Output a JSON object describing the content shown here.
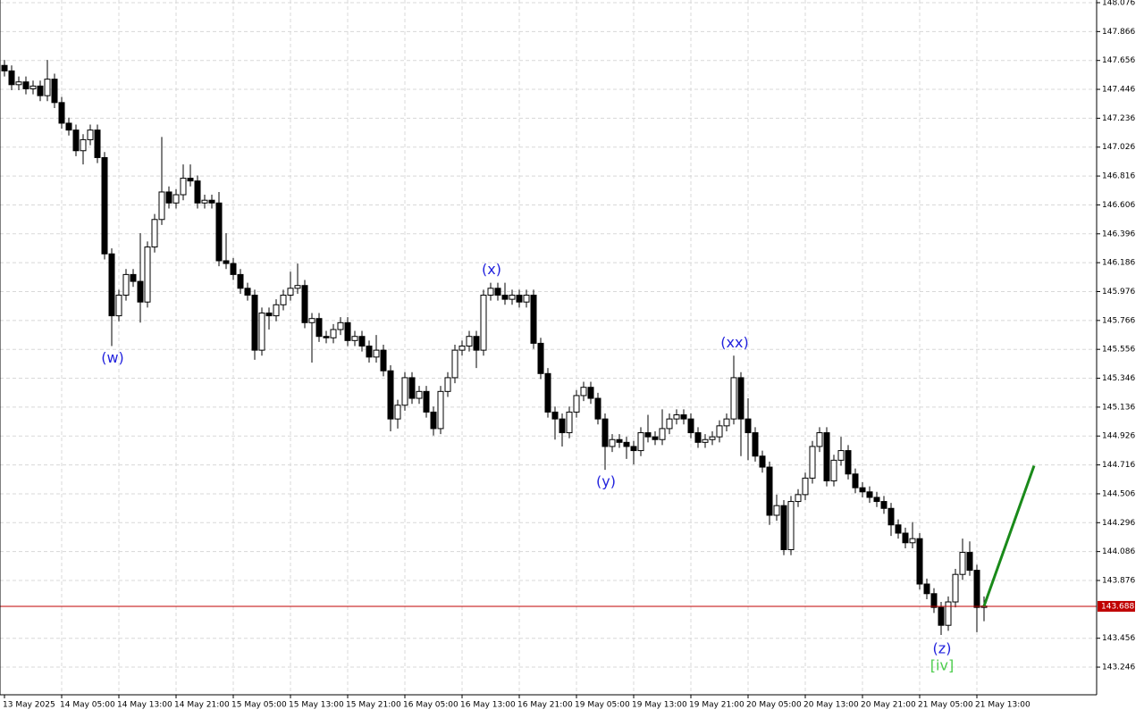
{
  "chart_data": {
    "type": "candlestick",
    "ylim": [
      143.045,
      148.076
    ],
    "yticks": [
      148.076,
      147.866,
      147.656,
      147.446,
      147.236,
      147.026,
      146.816,
      146.606,
      146.396,
      146.186,
      145.976,
      145.766,
      145.556,
      145.346,
      145.136,
      144.926,
      144.716,
      144.506,
      144.296,
      144.086,
      143.876,
      143.456,
      143.246
    ],
    "xlim": [
      -0.625,
      152.75
    ],
    "xticks": [
      {
        "value": 0,
        "label": "13 May 2025"
      },
      {
        "value": 8,
        "label": "14 May 05:00"
      },
      {
        "value": 16,
        "label": "14 May 13:00"
      },
      {
        "value": 24,
        "label": "14 May 21:00"
      },
      {
        "value": 32,
        "label": "15 May 05:00"
      },
      {
        "value": 40,
        "label": "15 May 13:00"
      },
      {
        "value": 48,
        "label": "15 May 21:00"
      },
      {
        "value": 56,
        "label": "16 May 05:00"
      },
      {
        "value": 64,
        "label": "16 May 13:00"
      },
      {
        "value": 72,
        "label": "16 May 21:00"
      },
      {
        "value": 80,
        "label": "19 May 05:00"
      },
      {
        "value": 88,
        "label": "19 May 13:00"
      },
      {
        "value": 96,
        "label": "19 May 21:00"
      },
      {
        "value": 104,
        "label": "20 May 05:00"
      },
      {
        "value": 112,
        "label": "20 May 13:00"
      },
      {
        "value": 120,
        "label": "20 May 21:00"
      },
      {
        "value": 128,
        "label": "21 May 05:00"
      },
      {
        "value": 136,
        "label": "21 May 13:00"
      }
    ],
    "grid": true,
    "up_color": "#ffffff",
    "down_color": "#000000",
    "candles": [
      [
        147.62,
        147.66,
        147.54,
        147.58
      ],
      [
        147.58,
        147.62,
        147.44,
        147.48
      ],
      [
        147.48,
        147.54,
        147.44,
        147.5
      ],
      [
        147.5,
        147.54,
        147.41,
        147.45
      ],
      [
        147.45,
        147.51,
        147.41,
        147.47
      ],
      [
        147.47,
        147.51,
        147.36,
        147.4
      ],
      [
        147.4,
        147.66,
        147.36,
        147.52
      ],
      [
        147.52,
        147.56,
        147.31,
        147.35
      ],
      [
        147.35,
        147.39,
        147.16,
        147.2
      ],
      [
        147.2,
        147.24,
        147.11,
        147.15
      ],
      [
        147.15,
        147.19,
        146.96,
        147.0
      ],
      [
        147.0,
        147.12,
        146.9,
        147.08
      ],
      [
        147.08,
        147.19,
        147.04,
        147.15
      ],
      [
        147.15,
        147.19,
        146.91,
        146.95
      ],
      [
        146.95,
        146.99,
        146.21,
        146.25
      ],
      [
        146.25,
        146.29,
        145.58,
        145.8
      ],
      [
        145.8,
        145.99,
        145.76,
        145.95
      ],
      [
        145.95,
        146.14,
        145.91,
        146.1
      ],
      [
        146.1,
        146.14,
        146.01,
        146.05
      ],
      [
        146.05,
        146.4,
        145.75,
        145.9
      ],
      [
        145.9,
        146.34,
        145.86,
        146.3
      ],
      [
        146.3,
        146.54,
        146.26,
        146.5
      ],
      [
        146.5,
        147.1,
        146.46,
        146.7
      ],
      [
        146.7,
        146.74,
        146.58,
        146.62
      ],
      [
        146.62,
        146.72,
        146.58,
        146.68
      ],
      [
        146.68,
        146.9,
        146.64,
        146.8
      ],
      [
        146.8,
        146.9,
        146.74,
        146.78
      ],
      [
        146.78,
        146.82,
        146.58,
        146.62
      ],
      [
        146.62,
        146.68,
        146.58,
        146.64
      ],
      [
        146.64,
        146.68,
        146.58,
        146.62
      ],
      [
        146.62,
        146.7,
        146.16,
        146.2
      ],
      [
        146.2,
        146.4,
        146.14,
        146.18
      ],
      [
        146.18,
        146.22,
        146.06,
        146.1
      ],
      [
        146.1,
        146.14,
        145.96,
        146.0
      ],
      [
        146.0,
        146.04,
        145.91,
        145.95
      ],
      [
        145.95,
        145.99,
        145.48,
        145.55
      ],
      [
        145.55,
        145.86,
        145.51,
        145.82
      ],
      [
        145.82,
        145.86,
        145.7,
        145.8
      ],
      [
        145.8,
        145.92,
        145.76,
        145.88
      ],
      [
        145.88,
        145.99,
        145.84,
        145.95
      ],
      [
        145.95,
        146.12,
        145.91,
        146.0
      ],
      [
        146.0,
        146.18,
        145.96,
        146.02
      ],
      [
        146.02,
        146.06,
        145.71,
        145.75
      ],
      [
        145.75,
        145.82,
        145.46,
        145.78
      ],
      [
        145.78,
        145.82,
        145.61,
        145.65
      ],
      [
        145.65,
        145.69,
        145.6,
        145.64
      ],
      [
        145.64,
        145.74,
        145.6,
        145.7
      ],
      [
        145.7,
        145.79,
        145.66,
        145.75
      ],
      [
        145.75,
        145.79,
        145.58,
        145.62
      ],
      [
        145.62,
        145.69,
        145.58,
        145.65
      ],
      [
        145.65,
        145.69,
        145.54,
        145.58
      ],
      [
        145.58,
        145.62,
        145.46,
        145.5
      ],
      [
        145.5,
        145.66,
        145.46,
        145.55
      ],
      [
        145.55,
        145.59,
        145.36,
        145.4
      ],
      [
        145.4,
        145.44,
        144.96,
        145.05
      ],
      [
        145.05,
        145.19,
        144.98,
        145.15
      ],
      [
        145.15,
        145.39,
        145.11,
        145.35
      ],
      [
        145.35,
        145.39,
        145.16,
        145.2
      ],
      [
        145.2,
        145.29,
        145.16,
        145.25
      ],
      [
        145.25,
        145.29,
        145.06,
        145.1
      ],
      [
        145.1,
        145.14,
        144.93,
        144.98
      ],
      [
        144.98,
        145.29,
        144.94,
        145.25
      ],
      [
        145.25,
        145.39,
        145.21,
        145.35
      ],
      [
        145.35,
        145.59,
        145.31,
        145.55
      ],
      [
        145.55,
        145.62,
        145.51,
        145.58
      ],
      [
        145.58,
        145.69,
        145.54,
        145.65
      ],
      [
        145.65,
        145.69,
        145.42,
        145.55
      ],
      [
        145.55,
        145.99,
        145.51,
        145.95
      ],
      [
        145.95,
        146.04,
        145.91,
        146.0
      ],
      [
        146.0,
        146.04,
        145.91,
        145.95
      ],
      [
        145.95,
        146.04,
        145.88,
        145.92
      ],
      [
        145.92,
        145.99,
        145.88,
        145.95
      ],
      [
        145.95,
        145.99,
        145.86,
        145.9
      ],
      [
        145.9,
        145.99,
        145.86,
        145.95
      ],
      [
        145.95,
        145.99,
        145.56,
        145.6
      ],
      [
        145.6,
        145.64,
        145.34,
        145.38
      ],
      [
        145.38,
        145.42,
        145.06,
        145.1
      ],
      [
        145.1,
        145.14,
        144.9,
        145.05
      ],
      [
        145.05,
        145.09,
        144.85,
        144.95
      ],
      [
        144.95,
        145.14,
        144.91,
        145.1
      ],
      [
        145.1,
        145.26,
        145.06,
        145.22
      ],
      [
        145.22,
        145.32,
        145.18,
        145.28
      ],
      [
        145.28,
        145.32,
        145.16,
        145.2
      ],
      [
        145.2,
        145.24,
        145.01,
        145.05
      ],
      [
        145.05,
        145.09,
        144.68,
        144.85
      ],
      [
        144.85,
        144.94,
        144.81,
        144.9
      ],
      [
        144.9,
        144.94,
        144.84,
        144.88
      ],
      [
        144.88,
        144.92,
        144.76,
        144.85
      ],
      [
        144.85,
        144.89,
        144.72,
        144.82
      ],
      [
        144.82,
        144.99,
        144.78,
        144.95
      ],
      [
        144.95,
        145.08,
        144.88,
        144.92
      ],
      [
        144.92,
        144.96,
        144.86,
        144.9
      ],
      [
        144.9,
        145.12,
        144.86,
        144.98
      ],
      [
        144.98,
        145.09,
        144.94,
        145.05
      ],
      [
        145.05,
        145.12,
        145.01,
        145.08
      ],
      [
        145.08,
        145.12,
        145.01,
        145.05
      ],
      [
        145.05,
        145.09,
        144.91,
        144.95
      ],
      [
        144.95,
        144.99,
        144.84,
        144.88
      ],
      [
        144.88,
        144.94,
        144.84,
        144.9
      ],
      [
        144.9,
        144.96,
        144.86,
        144.92
      ],
      [
        144.92,
        145.04,
        144.88,
        145.0
      ],
      [
        145.0,
        145.09,
        144.96,
        145.05
      ],
      [
        145.05,
        145.51,
        145.01,
        145.35
      ],
      [
        145.35,
        145.39,
        144.78,
        145.05
      ],
      [
        145.05,
        145.2,
        144.75,
        144.95
      ],
      [
        144.95,
        144.99,
        144.74,
        144.78
      ],
      [
        144.78,
        144.82,
        144.66,
        144.7
      ],
      [
        144.7,
        144.74,
        144.28,
        144.35
      ],
      [
        144.35,
        144.5,
        144.31,
        144.42
      ],
      [
        144.42,
        144.46,
        144.06,
        144.1
      ],
      [
        144.1,
        144.49,
        144.06,
        144.45
      ],
      [
        144.45,
        144.54,
        144.41,
        144.5
      ],
      [
        144.5,
        144.66,
        144.46,
        144.62
      ],
      [
        144.62,
        144.89,
        144.58,
        144.85
      ],
      [
        144.85,
        144.99,
        144.81,
        144.95
      ],
      [
        144.95,
        144.99,
        144.56,
        144.6
      ],
      [
        144.6,
        144.79,
        144.56,
        144.75
      ],
      [
        144.75,
        144.92,
        144.71,
        144.82
      ],
      [
        144.82,
        144.86,
        144.61,
        144.65
      ],
      [
        144.65,
        144.69,
        144.51,
        144.55
      ],
      [
        144.55,
        144.59,
        144.48,
        144.52
      ],
      [
        144.52,
        144.56,
        144.44,
        144.48
      ],
      [
        144.48,
        144.52,
        144.41,
        144.45
      ],
      [
        144.45,
        144.49,
        144.36,
        144.4
      ],
      [
        144.4,
        144.44,
        144.2,
        144.28
      ],
      [
        144.28,
        144.32,
        144.18,
        144.22
      ],
      [
        144.22,
        144.26,
        144.11,
        144.15
      ],
      [
        144.15,
        144.3,
        144.11,
        144.18
      ],
      [
        144.18,
        144.22,
        143.81,
        143.85
      ],
      [
        143.85,
        143.89,
        143.74,
        143.78
      ],
      [
        143.78,
        143.82,
        143.64,
        143.68
      ],
      [
        143.68,
        143.72,
        143.48,
        143.55
      ],
      [
        143.55,
        143.76,
        143.51,
        143.72
      ],
      [
        143.72,
        143.96,
        143.68,
        143.92
      ],
      [
        143.92,
        144.18,
        143.88,
        144.08
      ],
      [
        144.08,
        144.16,
        143.91,
        143.95
      ],
      [
        143.95,
        143.99,
        143.5,
        143.68
      ],
      [
        143.68,
        143.76,
        143.58,
        143.69
      ]
    ],
    "current_price": 143.688,
    "current_price_color": "#c00000",
    "projection": [
      143.69,
      144.71
    ],
    "projection_color": "#1a8a1a",
    "wave_labels": [
      "(w)",
      "(x)",
      "(y)",
      "(xx)",
      "(z)",
      "[iv]"
    ]
  }
}
